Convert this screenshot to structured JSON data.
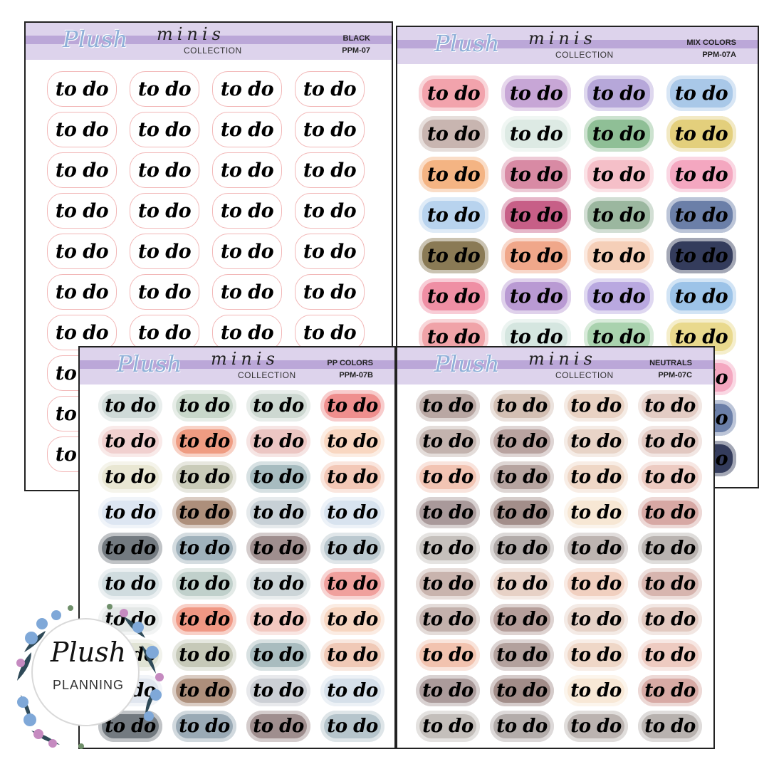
{
  "sticker_text": "to do",
  "header": {
    "logo": "Plush",
    "minis": "minis",
    "collection": "COLLECTION"
  },
  "badge": {
    "script": "Plush",
    "sub": "PLANNING"
  },
  "sheets": [
    {
      "id": "black",
      "color_name": "BLACK",
      "code": "PPM-07",
      "rows_visible": 10,
      "colors": [
        "#ffffff"
      ]
    },
    {
      "id": "mix",
      "color_name": "MIX COLORS",
      "code": "PPM-07A",
      "rows_visible": 10,
      "colors": [
        "#f2a3ac",
        "#c7a6d6",
        "#b6a7d9",
        "#a9c8e8",
        "#c8b5b0",
        "#ddeae4",
        "#8fbf96",
        "#e3cf7c",
        "#f4b483",
        "#d88aa4",
        "#f5bfc8",
        "#f4a7c0",
        "#b8d3ee",
        "#c75f87",
        "#9bb79f",
        "#6b7fa8",
        "#8a7a55",
        "#f0a78a",
        "#f5cfb8",
        "#343c5c",
        "#ef8fa4",
        "#b99ad3",
        "#b9a8e0",
        "#9cc3e8",
        "#f0a3a8",
        "#d5e6e0",
        "#a9d2ae",
        "#e9d98d",
        "#f5b89b",
        "#c79cc4",
        "#f5bfc8",
        "#f4a7c0",
        "#b8d3ee",
        "#c07f9c",
        "#9bb79f",
        "#6b7fa8",
        "#8a7a55",
        "#f0a78a",
        "#f5cfb8",
        "#343c5c"
      ]
    },
    {
      "id": "pp",
      "color_name": "PP COLORS",
      "code": "PPM-07B",
      "rows_visible": 10,
      "colors": [
        "#cfdad8",
        "#c8d7ca",
        "#cdd8d1",
        "#ef8f8e",
        "#f1d0cf",
        "#ef9c82",
        "#ecc6c3",
        "#f9d7c1",
        "#e9e7d3",
        "#c9cbb9",
        "#a7bcc0",
        "#f3c8b7",
        "#dde6f2",
        "#ad8f7b",
        "#c7d0d6",
        "#d8e3ef",
        "#737a80",
        "#9fb1bb",
        "#9f8e8e",
        "#bac8cf",
        "#d0dcdf",
        "#c0d0cb",
        "#ccd5d8",
        "#f0a09d",
        "#e3e7e6",
        "#f09783",
        "#f2c8c0",
        "#f7d6c1",
        "#e0e3d4",
        "#c6c9b8",
        "#a9bcbf",
        "#f0c9b6",
        "#e0e6ef",
        "#ad8f7b",
        "#cccfd5",
        "#d6e0ea",
        "#737a80",
        "#9aaab5",
        "#9f8e8e",
        "#b6c5cc"
      ]
    },
    {
      "id": "neutrals",
      "color_name": "NEUTRALS",
      "code": "PPM-07C",
      "rows_visible": 10,
      "colors": [
        "#b9a7a3",
        "#d3bfb3",
        "#e9d2c3",
        "#e3ccc4",
        "#c3b3ae",
        "#b9a3a0",
        "#e8d4c7",
        "#e2c8c1",
        "#f2c4b3",
        "#b6a4a0",
        "#efd7c6",
        "#edcbc2",
        "#a9999a",
        "#a38e8a",
        "#f7e7d4",
        "#d7a8a4",
        "#c5c0bc",
        "#b2aba9",
        "#bdb4b1",
        "#b9b3b0",
        "#c9b4ae",
        "#e7d1c6",
        "#f1d0c0",
        "#d7b5af",
        "#c3b1ac",
        "#b59e9a",
        "#e6d2c7",
        "#e2c9c0",
        "#f2c3af",
        "#b3a19d",
        "#efd7c7",
        "#eecbc1",
        "#ab9b9b",
        "#a28d89",
        "#f8e8d6",
        "#d8aaa5",
        "#c4bfbb",
        "#b3acaa",
        "#bbb3b0",
        "#b8b2af"
      ]
    }
  ]
}
